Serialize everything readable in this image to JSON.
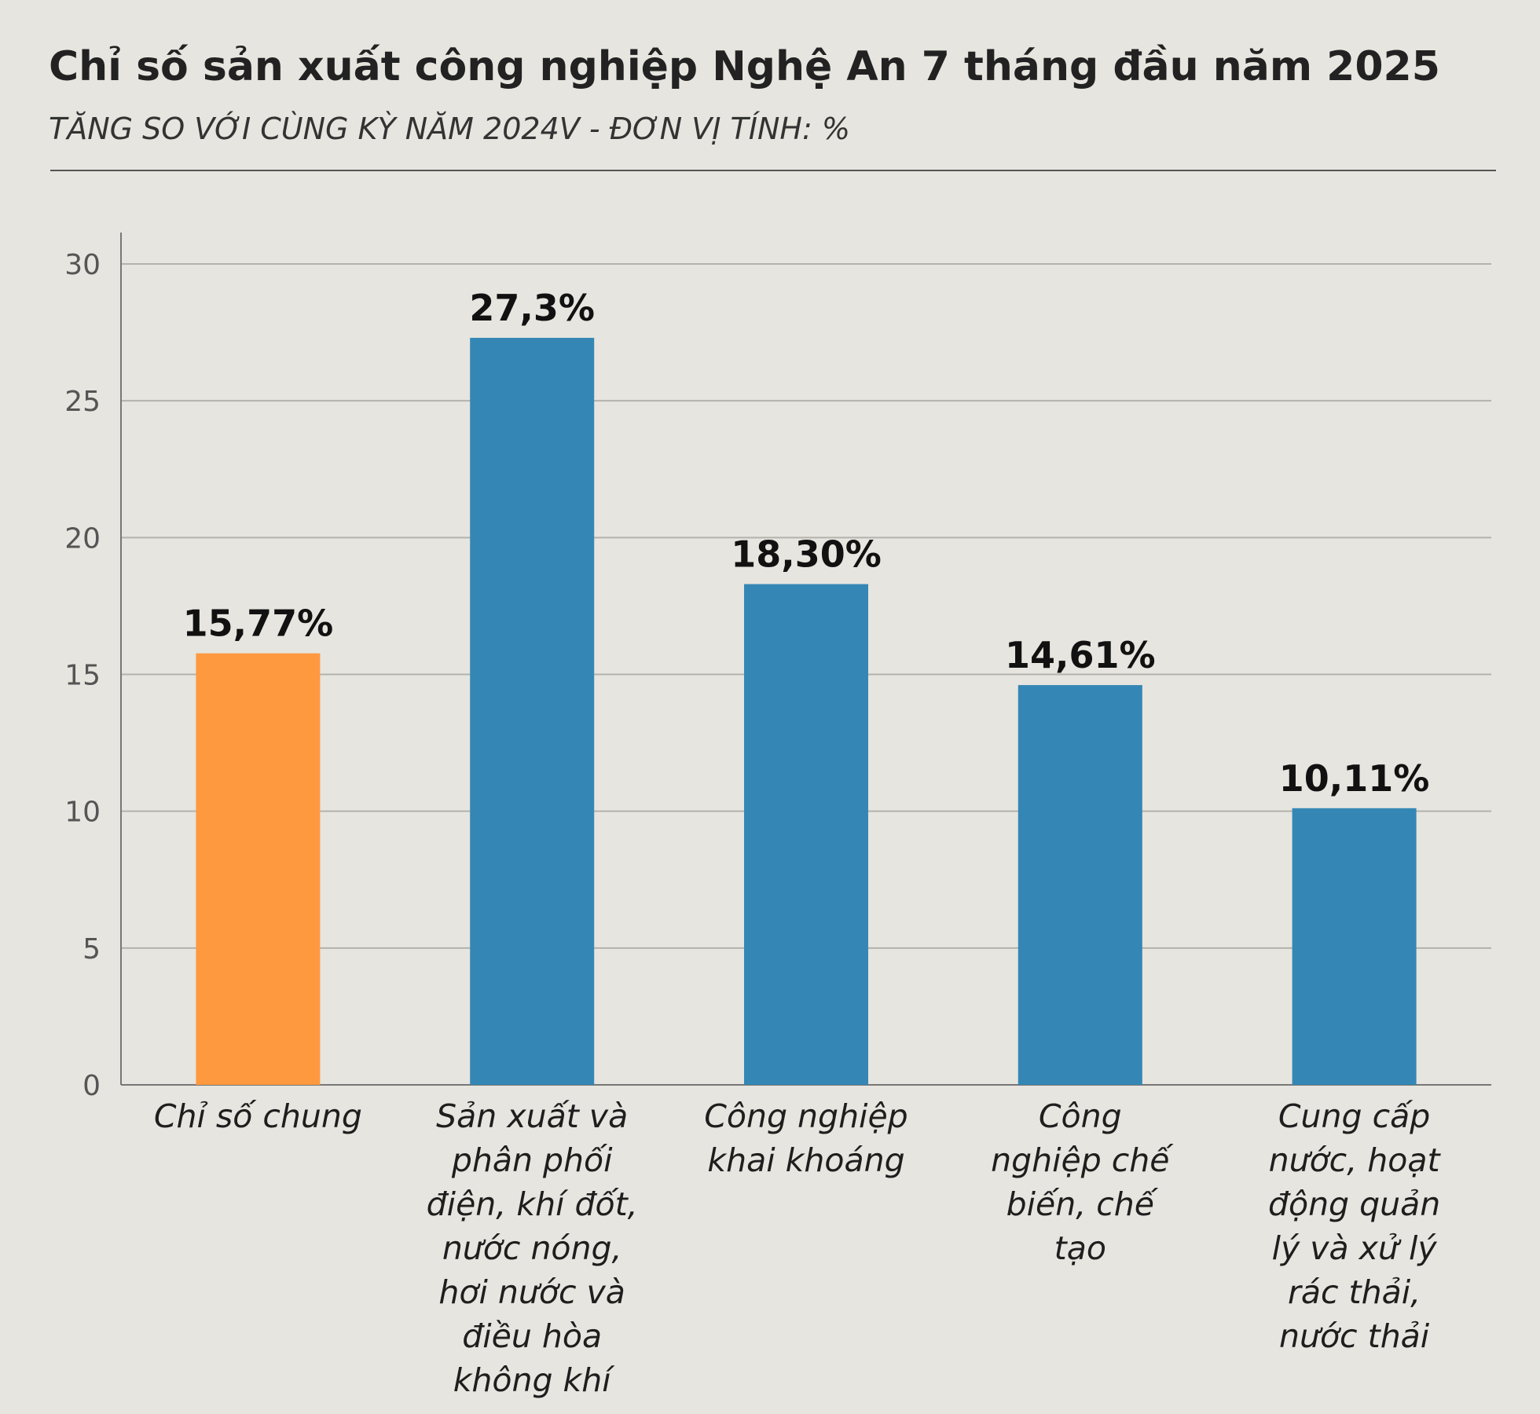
{
  "header": {
    "title": "Chỉ số sản xuất công nghiệp Nghệ An 7 tháng đầu năm 2025",
    "subtitle": "TĂNG SO VỚI CÙNG KỲ NĂM 2024V - ĐƠN VỊ TÍNH: %"
  },
  "chart_data": {
    "type": "bar",
    "title": "Chỉ số sản xuất công nghiệp Nghệ An 7 tháng đầu năm 2025",
    "subtitle": "TĂNG SO VỚI CÙNG KỲ NĂM 2024V - ĐƠN VỊ TÍNH: %",
    "categories": [
      "Chỉ số chung",
      "Sản xuất và phân phối điện, khí đốt, nước nóng, hơi nước và điều hòa không khí",
      "Công nghiệp khai khoáng",
      "Công nghiệp chế biến, chế tạo",
      "Cung cấp nước, hoạt động quản lý và xử lý rác thải, nước thải"
    ],
    "values": [
      15.77,
      27.3,
      18.3,
      14.61,
      10.11
    ],
    "data_labels": [
      "15,77%",
      "27,3%",
      "18,30%",
      "14,61%",
      "10,11%"
    ],
    "bar_colors": [
      "#ff9940",
      "#3487b5",
      "#3487b5",
      "#3487b5",
      "#3487b5"
    ],
    "ylim": [
      0,
      30
    ],
    "yticks": [
      0,
      5,
      10,
      15,
      20,
      25,
      30
    ],
    "grid": true,
    "legend": "none"
  },
  "category_lines": [
    [
      "Chỉ số chung"
    ],
    [
      "Sản xuất và",
      "phân phối",
      "điện, khí đốt,",
      "nước nóng,",
      "hơi nước và",
      "điều hòa",
      "không khí"
    ],
    [
      "Công nghiệp",
      "khai khoáng"
    ],
    [
      "Công",
      "nghiệp chế",
      "biến, chế",
      "tạo"
    ],
    [
      "Cung cấp",
      "nước, hoạt",
      "động quản",
      "lý và xử lý",
      "rác thải,",
      "nước thải"
    ]
  ]
}
